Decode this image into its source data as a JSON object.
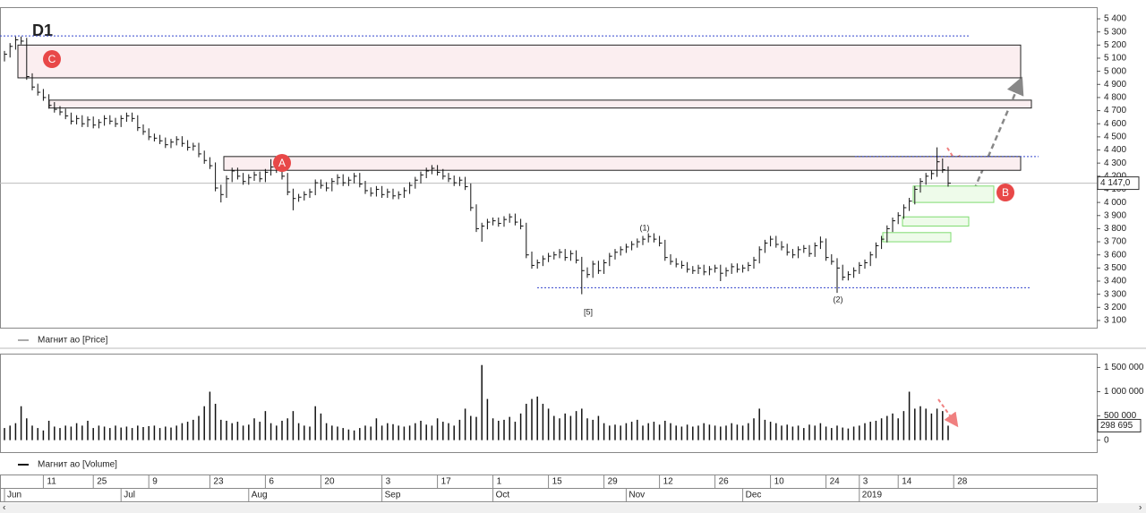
{
  "chart_data": {
    "type": "ohlc",
    "title": "D1",
    "legend": "Магнит ао [Price]",
    "color": "#111111",
    "close": [
      5130,
      5190,
      5240,
      5230,
      4960,
      4880,
      4840,
      4800,
      4740,
      4710,
      4690,
      4660,
      4620,
      4640,
      4600,
      4630,
      4590,
      4610,
      4640,
      4620,
      4600,
      4640,
      4660,
      4640,
      4570,
      4540,
      4500,
      4490,
      4470,
      4440,
      4460,
      4480,
      4450,
      4420,
      4430,
      4370,
      4320,
      4280,
      4110,
      4060,
      4180,
      4240,
      4200,
      4160,
      4190,
      4210,
      4180,
      4230,
      4270,
      4250,
      4200,
      4080,
      4030,
      4040,
      4060,
      4080,
      4150,
      4130,
      4110,
      4160,
      4190,
      4150,
      4170,
      4200,
      4140,
      4090,
      4070,
      4100,
      4060,
      4080,
      4050,
      4060,
      4090,
      4130,
      4170,
      4210,
      4240,
      4260,
      4230,
      4200,
      4180,
      4150,
      4170,
      4120,
      3960,
      3800,
      3820,
      3850,
      3860,
      3840,
      3870,
      3890,
      3850,
      3820,
      3600,
      3520,
      3540,
      3570,
      3590,
      3600,
      3620,
      3580,
      3610,
      3560,
      3480,
      3450,
      3530,
      3480,
      3540,
      3590,
      3620,
      3640,
      3660,
      3680,
      3700,
      3720,
      3740,
      3720,
      3690,
      3580,
      3550,
      3530,
      3520,
      3490,
      3480,
      3500,
      3470,
      3490,
      3500,
      3460,
      3480,
      3510,
      3490,
      3500,
      3520,
      3560,
      3640,
      3690,
      3720,
      3680,
      3660,
      3620,
      3600,
      3640,
      3650,
      3610,
      3670,
      3700,
      3580,
      3550,
      3500,
      3430,
      3450,
      3480,
      3520,
      3540,
      3600,
      3670,
      3720,
      3800,
      3860,
      3900,
      3960,
      4010,
      4100,
      4160,
      4200,
      4220,
      4310,
      4250,
      4147
    ],
    "high": [
      5155,
      5215,
      5265,
      5265,
      5255,
      4985,
      4905,
      4865,
      4825,
      4765,
      4735,
      4715,
      4685,
      4665,
      4665,
      4655,
      4655,
      4635,
      4665,
      4665,
      4645,
      4665,
      4685,
      4685,
      4665,
      4595,
      4565,
      4525,
      4515,
      4495,
      4485,
      4505,
      4505,
      4475,
      4455,
      4455,
      4395,
      4345,
      4305,
      4135,
      4205,
      4265,
      4265,
      4225,
      4215,
      4235,
      4235,
      4255,
      4330,
      4295,
      4275,
      4225,
      4105,
      4065,
      4085,
      4105,
      4175,
      4175,
      4155,
      4185,
      4215,
      4215,
      4195,
      4225,
      4225,
      4165,
      4115,
      4125,
      4125,
      4105,
      4105,
      4085,
      4115,
      4155,
      4195,
      4235,
      4265,
      4285,
      4285,
      4255,
      4225,
      4205,
      4195,
      4195,
      4145,
      3985,
      3845,
      3875,
      3885,
      3885,
      3895,
      3915,
      3915,
      3875,
      3845,
      3625,
      3565,
      3595,
      3615,
      3625,
      3645,
      3645,
      3635,
      3635,
      3585,
      3505,
      3555,
      3555,
      3565,
      3615,
      3645,
      3665,
      3685,
      3705,
      3725,
      3745,
      3765,
      3765,
      3745,
      3715,
      3605,
      3575,
      3555,
      3545,
      3515,
      3525,
      3525,
      3515,
      3525,
      3525,
      3505,
      3535,
      3535,
      3525,
      3545,
      3585,
      3665,
      3715,
      3745,
      3745,
      3705,
      3685,
      3645,
      3665,
      3675,
      3675,
      3695,
      3740,
      3725,
      3605,
      3575,
      3525,
      3475,
      3505,
      3545,
      3565,
      3625,
      3695,
      3745,
      3825,
      3885,
      3925,
      3985,
      4035,
      4125,
      4185,
      4225,
      4245,
      4420,
      4335,
      4275
    ],
    "low": [
      5075,
      5105,
      5165,
      5205,
      4935,
      4855,
      4815,
      4775,
      4715,
      4685,
      4665,
      4635,
      4595,
      4595,
      4575,
      4575,
      4565,
      4565,
      4585,
      4595,
      4575,
      4575,
      4615,
      4615,
      4545,
      4515,
      4475,
      4465,
      4445,
      4415,
      4415,
      4435,
      4425,
      4395,
      4395,
      4345,
      4295,
      4255,
      4085,
      4000,
      4035,
      4155,
      4175,
      4135,
      4135,
      4165,
      4155,
      4155,
      4205,
      4225,
      4175,
      4055,
      3940,
      4005,
      4015,
      4035,
      4055,
      4105,
      4085,
      4085,
      4135,
      4125,
      4125,
      4145,
      4115,
      4065,
      4045,
      4045,
      4035,
      4035,
      4025,
      4025,
      4035,
      4065,
      4105,
      4145,
      4185,
      4215,
      4205,
      4175,
      4155,
      4125,
      4125,
      4095,
      3935,
      3775,
      3700,
      3795,
      3825,
      3815,
      3815,
      3845,
      3825,
      3795,
      3575,
      3495,
      3495,
      3515,
      3545,
      3565,
      3575,
      3555,
      3555,
      3535,
      3300,
      3425,
      3425,
      3455,
      3455,
      3515,
      3565,
      3595,
      3615,
      3635,
      3655,
      3675,
      3695,
      3695,
      3665,
      3555,
      3525,
      3505,
      3495,
      3465,
      3455,
      3455,
      3445,
      3445,
      3465,
      3400,
      3435,
      3455,
      3465,
      3465,
      3475,
      3495,
      3535,
      3615,
      3665,
      3655,
      3635,
      3595,
      3575,
      3575,
      3615,
      3585,
      3585,
      3645,
      3555,
      3525,
      3310,
      3405,
      3405,
      3425,
      3455,
      3495,
      3515,
      3575,
      3645,
      3695,
      3775,
      3835,
      3875,
      3935,
      3985,
      4075,
      4135,
      4175,
      4195,
      4225,
      4120
    ],
    "ylim": [
      3045,
      5489
    ],
    "yticks": [
      {
        "value": 3100,
        "label": "3 100"
      },
      {
        "value": 3200,
        "label": "3 200"
      },
      {
        "value": 3300,
        "label": "3 300"
      },
      {
        "value": 3400,
        "label": "3 400"
      },
      {
        "value": 3500,
        "label": "3 500"
      },
      {
        "value": 3600,
        "label": "3 600"
      },
      {
        "value": 3700,
        "label": "3 700"
      },
      {
        "value": 3800,
        "label": "3 800"
      },
      {
        "value": 3900,
        "label": "3 900"
      },
      {
        "value": 4000,
        "label": "4 000"
      },
      {
        "value": 4100,
        "label": "4 100"
      },
      {
        "value": 4200,
        "label": "4 200"
      },
      {
        "value": 4300,
        "label": "4 300"
      },
      {
        "value": 4400,
        "label": "4 400"
      },
      {
        "value": 4500,
        "label": "4 500"
      },
      {
        "value": 4600,
        "label": "4 600"
      },
      {
        "value": 4700,
        "label": "4 700"
      },
      {
        "value": 4800,
        "label": "4 800"
      },
      {
        "value": 4900,
        "label": "4 900"
      },
      {
        "value": 5000,
        "label": "5 000"
      },
      {
        "value": 5100,
        "label": "5 100"
      },
      {
        "value": 5200,
        "label": "5 200"
      },
      {
        "value": 5300,
        "label": "5 300"
      },
      {
        "value": 5400,
        "label": "5 400"
      }
    ],
    "last_price": {
      "value": 4147,
      "label": "4 147,0"
    },
    "zones": [
      {
        "top": 5200,
        "bottom": 4950,
        "fill": "#fbeef0",
        "stroke": "#222222"
      },
      {
        "top": 4780,
        "bottom": 4720,
        "fill": "#fbeef0",
        "stroke": "#222222"
      },
      {
        "top": 4350,
        "bottom": 4245,
        "fill": "#fbeef0",
        "stroke": "#222222"
      },
      {
        "top": 4125,
        "bottom": 4000,
        "fill": "#eefbea",
        "stroke": "#7fdc70"
      },
      {
        "top": 3890,
        "bottom": 3820,
        "fill": "#eefbea",
        "stroke": "#7fdc70"
      },
      {
        "top": 3770,
        "bottom": 3700,
        "fill": "#eefbea",
        "stroke": "#7fdc70"
      }
    ],
    "levels": [
      5270,
      3350,
      4350
    ],
    "annotations": [
      "A",
      "B",
      "C"
    ],
    "wave_labels": [
      "(1)",
      "(2)",
      "[5]"
    ],
    "xticks": [
      {
        "value": 7,
        "label": "11"
      },
      {
        "value": 16,
        "label": "25"
      },
      {
        "value": 26,
        "label": "9"
      },
      {
        "value": 37,
        "label": "23"
      },
      {
        "value": 47,
        "label": "6"
      },
      {
        "value": 57,
        "label": "20"
      },
      {
        "value": 68,
        "label": "3"
      },
      {
        "value": 78,
        "label": "17"
      },
      {
        "value": 88,
        "label": "1"
      },
      {
        "value": 98,
        "label": "15"
      },
      {
        "value": 108,
        "label": "29"
      },
      {
        "value": 118,
        "label": "12"
      },
      {
        "value": 128,
        "label": "26"
      },
      {
        "value": 138,
        "label": "10"
      },
      {
        "value": 148,
        "label": "24"
      },
      {
        "value": 154,
        "label": "3"
      },
      {
        "value": 161,
        "label": "14"
      },
      {
        "value": 171,
        "label": "28"
      }
    ],
    "month_ticks": [
      {
        "value": 0,
        "label": "Jun"
      },
      {
        "value": 21,
        "label": "Jul"
      },
      {
        "value": 44,
        "label": "Aug"
      },
      {
        "value": 68,
        "label": "Sep"
      },
      {
        "value": 88,
        "label": "Oct"
      },
      {
        "value": 112,
        "label": "Nov"
      },
      {
        "value": 133,
        "label": "Dec"
      },
      {
        "value": 154,
        "label": "2019"
      }
    ],
    "volume": {
      "legend": "Магнит ао [Volume]",
      "values": [
        250000,
        300000,
        350000,
        700000,
        450000,
        300000,
        250000,
        200000,
        400000,
        280000,
        250000,
        300000,
        280000,
        350000,
        300000,
        400000,
        250000,
        300000,
        280000,
        250000,
        300000,
        260000,
        280000,
        250000,
        300000,
        270000,
        290000,
        300000,
        250000,
        280000,
        260000,
        300000,
        350000,
        380000,
        420000,
        500000,
        700000,
        1000000,
        750000,
        420000,
        400000,
        350000,
        380000,
        300000,
        320000,
        450000,
        380000,
        600000,
        350000,
        300000,
        400000,
        450000,
        600000,
        350000,
        300000,
        280000,
        700000,
        550000,
        350000,
        300000,
        280000,
        250000,
        220000,
        200000,
        250000,
        300000,
        280000,
        450000,
        300000,
        350000,
        330000,
        300000,
        280000,
        300000,
        350000,
        400000,
        320000,
        300000,
        450000,
        380000,
        350000,
        300000,
        420000,
        650000,
        500000,
        480000,
        1550000,
        850000,
        450000,
        400000,
        420000,
        480000,
        380000,
        550000,
        750000,
        850000,
        900000,
        750000,
        650000,
        500000,
        450000,
        550000,
        500000,
        600000,
        650000,
        450000,
        420000,
        500000,
        350000,
        300000,
        320000,
        300000,
        350000,
        380000,
        420000,
        300000,
        350000,
        380000,
        320000,
        400000,
        350000,
        300000,
        280000,
        320000,
        280000,
        300000,
        350000,
        320000,
        300000,
        280000,
        300000,
        350000,
        320000,
        300000,
        350000,
        450000,
        650000,
        420000,
        380000,
        350000,
        300000,
        320000,
        280000,
        300000,
        250000,
        320000,
        300000,
        350000,
        280000,
        250000,
        300000,
        260000,
        240000,
        280000,
        300000,
        350000,
        380000,
        400000,
        450000,
        500000,
        550000,
        450000,
        600000,
        1000000,
        650000,
        700000,
        650000,
        550000,
        650000,
        600000,
        298695
      ],
      "last": {
        "value": 298695,
        "label": "298 695"
      },
      "ylim": [
        -247000,
        1785000
      ],
      "yticks": [
        0,
        {
          "value": 500000,
          "label": "500 000"
        },
        {
          "value": 1000000,
          "label": "1 000 000"
        },
        {
          "value": 1500000,
          "label": "1 500 000"
        }
      ]
    }
  }
}
